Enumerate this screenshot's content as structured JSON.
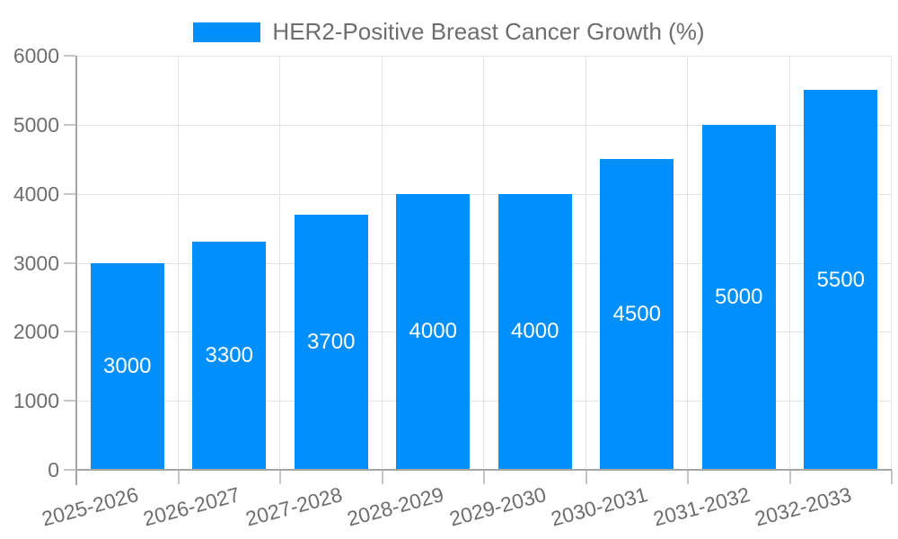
{
  "legend": {
    "label": "HER2-Positive Breast Cancer Growth (%)"
  },
  "chart_data": {
    "type": "bar",
    "title": "HER2-Positive Breast Cancer Growth (%)",
    "categories": [
      "2025-2026",
      "2026-2027",
      "2027-2028",
      "2028-2029",
      "2029-2030",
      "2030-2031",
      "2031-2032",
      "2032-2033"
    ],
    "values": [
      3000,
      3300,
      3700,
      4000,
      4000,
      4500,
      5000,
      5500
    ],
    "bar_labels": [
      "3000",
      "3300",
      "3700",
      "4000",
      "4000",
      "4500",
      "5000",
      "5500"
    ],
    "xlabel": "",
    "ylabel": "",
    "ylim": [
      0,
      6000
    ],
    "yticks": [
      0,
      1000,
      2000,
      3000,
      4000,
      5000,
      6000
    ],
    "grid": {
      "horizontal": true,
      "vertical": true
    },
    "legend_position": "top",
    "bar_labels_inside": true
  },
  "colors": {
    "bar": "#008FFB",
    "bar_label": "#FFFFFF",
    "grid": "#E4E4E4",
    "axis": "#A6A6A6",
    "tick": "#C6C6C6",
    "text": "#6E6E6E",
    "background": "#FFFFFF"
  }
}
